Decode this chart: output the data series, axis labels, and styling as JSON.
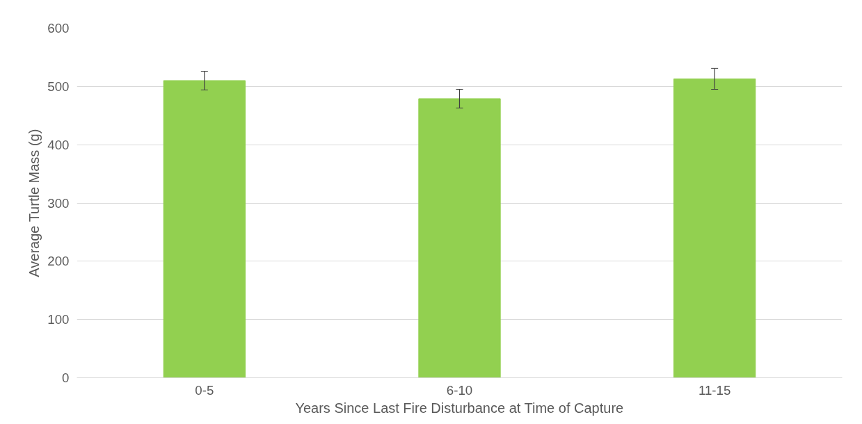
{
  "chart_data": {
    "type": "bar",
    "xlabel": "Years Since Last Fire Disturbance at Time of Capture",
    "ylabel": "Average Turtle Mass (g)",
    "categories": [
      "0-5",
      "6-10",
      "11-15"
    ],
    "values": [
      510,
      479,
      513
    ],
    "errors": [
      16,
      16,
      18
    ],
    "color": "#92d050",
    "ylim": [
      0,
      600
    ],
    "yticks": [
      0,
      100,
      200,
      300,
      400,
      500,
      600
    ],
    "grid": "y"
  }
}
